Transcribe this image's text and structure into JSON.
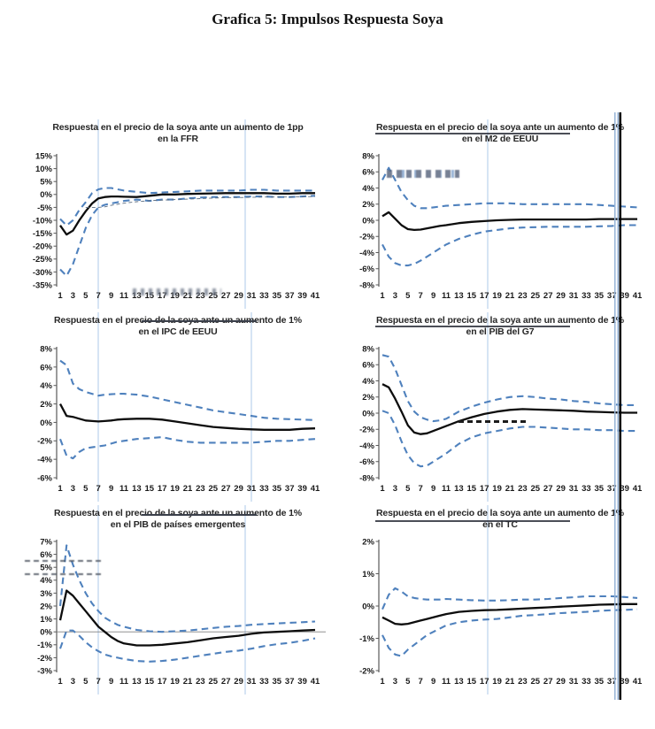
{
  "page_title": "Grafica 5: Impulsos Respuesta Soya",
  "colors": {
    "center_line": "#0d0d0d",
    "band": "#4f81bd",
    "light_vline": "#cfdff2",
    "rule_blue": "#95b3d7",
    "axis": "#595959",
    "zero_line": "#808080"
  },
  "x_points": [
    1,
    2,
    3,
    4,
    5,
    6,
    7,
    8,
    9,
    10,
    11,
    13,
    15,
    17,
    19,
    21,
    23,
    25,
    27,
    29,
    31,
    33,
    35,
    37,
    39,
    41
  ],
  "x_ticks": [
    1,
    3,
    5,
    7,
    9,
    11,
    13,
    15,
    17,
    19,
    21,
    23,
    25,
    27,
    29,
    31,
    33,
    35,
    37,
    39,
    41
  ],
  "chart_data": [
    {
      "type": "line",
      "title_line1": "Respuesta en el precio de la soya ante un aumento de 1pp",
      "title_line2": "en la FFR",
      "ylim": [
        -35,
        15
      ],
      "ytick_step": 5,
      "light_vlines": [
        7,
        30
      ],
      "zero_line": false,
      "series": [
        {
          "name": "respuesta",
          "values": [
            -12,
            -15.5,
            -14,
            -10,
            -6.5,
            -3.5,
            -1.5,
            -1,
            -0.8,
            -0.8,
            -0.9,
            -1,
            -0.5,
            0,
            0,
            0.2,
            0.3,
            0.4,
            0.5,
            0.5,
            0.5,
            0.5,
            0.3,
            0.3,
            0.5,
            0.5
          ]
        },
        {
          "name": "banda_superior",
          "values": [
            -9.5,
            -12,
            -10,
            -6,
            -3,
            0.5,
            2,
            2.5,
            2.5,
            2,
            1.5,
            1,
            0.5,
            0.8,
            1,
            1.2,
            1.5,
            1.5,
            1.5,
            1.5,
            1.8,
            1.8,
            1.5,
            1.5,
            1.5,
            1.5
          ]
        },
        {
          "name": "banda_inferior",
          "values": [
            -29,
            -31.5,
            -27,
            -20,
            -13,
            -8,
            -5,
            -4,
            -3.5,
            -3,
            -2.5,
            -2,
            -2.5,
            -2,
            -2,
            -1.5,
            -1.2,
            -1,
            -1,
            -1,
            -0.8,
            -0.8,
            -1,
            -1,
            -0.8,
            -0.5
          ]
        },
        {
          "name": "banda_interna",
          "values": [
            null,
            null,
            null,
            null,
            -5,
            -5,
            -5,
            -4.8,
            -4.2,
            -3.8,
            -3.4,
            -2.8,
            -2.4,
            -2.2,
            -2,
            -1.8,
            -1.6,
            -1.4,
            -1.2,
            -1.2,
            -1.1,
            -1,
            -1,
            -1,
            -0.9,
            -0.8
          ]
        }
      ]
    },
    {
      "type": "line",
      "title_line1": "Respuesta en el precio de la soya ante un aumento de 1%",
      "title_line2": "en el M2 de EEUU",
      "ylim": [
        -8,
        8
      ],
      "ytick_step": 2,
      "light_vlines": [
        17.5
      ],
      "zero_line": false,
      "series": [
        {
          "name": "respuesta",
          "values": [
            0.5,
            1.0,
            0.2,
            -0.6,
            -1.1,
            -1.2,
            -1.15,
            -1.0,
            -0.85,
            -0.7,
            -0.6,
            -0.35,
            -0.2,
            -0.1,
            0,
            0.05,
            0.1,
            0.1,
            0.1,
            0.1,
            0.1,
            0.1,
            0.15,
            0.15,
            0.15,
            0.15
          ]
        },
        {
          "name": "banda_superior",
          "values": [
            5,
            6.5,
            5,
            3.5,
            2.5,
            1.8,
            1.5,
            1.5,
            1.6,
            1.7,
            1.8,
            1.9,
            2.0,
            2.1,
            2.1,
            2.1,
            2.0,
            2.0,
            2.0,
            2.0,
            2.0,
            2.0,
            1.9,
            1.8,
            1.7,
            1.6
          ]
        },
        {
          "name": "banda_inferior",
          "values": [
            -3,
            -4.5,
            -5.3,
            -5.6,
            -5.6,
            -5.4,
            -5.0,
            -4.5,
            -4.0,
            -3.5,
            -3.0,
            -2.3,
            -1.8,
            -1.4,
            -1.2,
            -1.0,
            -0.9,
            -0.85,
            -0.8,
            -0.8,
            -0.8,
            -0.8,
            -0.75,
            -0.7,
            -0.6,
            -0.6
          ]
        }
      ]
    },
    {
      "type": "line",
      "title_line1": "Respuesta en el precio de la soya ante un aumento de 1%",
      "title_line2": "en el IPC de EEUU",
      "ylim": [
        -6,
        8
      ],
      "ytick_step": 2,
      "light_vlines": [
        7,
        31
      ],
      "zero_line": false,
      "series": [
        {
          "name": "respuesta",
          "values": [
            2.0,
            0.7,
            0.6,
            0.4,
            0.2,
            0.15,
            0.1,
            0.15,
            0.2,
            0.3,
            0.35,
            0.4,
            0.4,
            0.3,
            0.1,
            -0.1,
            -0.3,
            -0.5,
            -0.6,
            -0.7,
            -0.75,
            -0.8,
            -0.8,
            -0.8,
            -0.7,
            -0.65
          ]
        },
        {
          "name": "banda_superior",
          "values": [
            6.7,
            6.2,
            4.2,
            3.6,
            3.3,
            3.1,
            2.9,
            3.0,
            3.05,
            3.1,
            3.1,
            3.0,
            2.8,
            2.5,
            2.2,
            1.9,
            1.6,
            1.3,
            1.1,
            0.9,
            0.7,
            0.5,
            0.4,
            0.35,
            0.3,
            0.25
          ]
        },
        {
          "name": "banda_inferior",
          "values": [
            -1.8,
            -3.6,
            -3.9,
            -3.2,
            -2.8,
            -2.7,
            -2.6,
            -2.5,
            -2.3,
            -2.1,
            -2.0,
            -1.8,
            -1.7,
            -1.6,
            -1.9,
            -2.1,
            -2.2,
            -2.2,
            -2.2,
            -2.2,
            -2.2,
            -2.1,
            -2.0,
            -2.0,
            -1.9,
            -1.8
          ]
        }
      ]
    },
    {
      "type": "line",
      "title_line1": "Respuesta en el precio de la soya ante un aumento de 1%",
      "title_line2": "en el PIB del G7",
      "ylim": [
        -8,
        8
      ],
      "ytick_step": 2,
      "light_vlines": [
        17.5
      ],
      "zero_line": false,
      "series": [
        {
          "name": "respuesta",
          "values": [
            3.6,
            3.2,
            1.8,
            0.2,
            -1.5,
            -2.4,
            -2.6,
            -2.5,
            -2.2,
            -1.9,
            -1.6,
            -1.0,
            -0.5,
            -0.1,
            0.2,
            0.4,
            0.5,
            0.45,
            0.4,
            0.35,
            0.3,
            0.2,
            0.15,
            0.1,
            0.05,
            0.05
          ]
        },
        {
          "name": "banda_superior",
          "values": [
            7.2,
            7.0,
            5.5,
            3.5,
            1.5,
            0.2,
            -0.5,
            -0.8,
            -1.0,
            -0.9,
            -0.7,
            0.2,
            0.8,
            1.3,
            1.7,
            2.0,
            2.1,
            2.0,
            1.8,
            1.7,
            1.5,
            1.4,
            1.2,
            1.1,
            1.0,
            1.0
          ]
        },
        {
          "name": "banda_inferior",
          "values": [
            0.3,
            0.0,
            -1.5,
            -3.5,
            -5.2,
            -6.2,
            -6.6,
            -6.5,
            -6.0,
            -5.5,
            -5.0,
            -3.8,
            -3.0,
            -2.5,
            -2.2,
            -1.9,
            -1.7,
            -1.7,
            -1.8,
            -1.9,
            -2.0,
            -2.0,
            -2.1,
            -2.1,
            -2.2,
            -2.2
          ]
        }
      ]
    },
    {
      "type": "line",
      "title_line1": "Respuesta en el precio de la soya ante un aumento de 1%",
      "title_line2": "en el PIB de países emergentes",
      "ylim": [
        -3,
        7
      ],
      "ytick_step": 1,
      "light_vlines": [
        7,
        30
      ],
      "zero_line": true,
      "series": [
        {
          "name": "respuesta",
          "values": [
            0.9,
            3.2,
            2.8,
            2.2,
            1.6,
            1.0,
            0.4,
            0.0,
            -0.4,
            -0.7,
            -0.9,
            -1.05,
            -1.05,
            -1.0,
            -0.9,
            -0.8,
            -0.65,
            -0.5,
            -0.4,
            -0.3,
            -0.15,
            -0.05,
            0.0,
            0.05,
            0.1,
            0.15
          ]
        },
        {
          "name": "banda_superior",
          "values": [
            2.0,
            6.7,
            5.2,
            4.0,
            3.0,
            2.2,
            1.6,
            1.1,
            0.8,
            0.55,
            0.4,
            0.15,
            0.05,
            0.0,
            0.05,
            0.1,
            0.2,
            0.3,
            0.4,
            0.45,
            0.55,
            0.6,
            0.65,
            0.7,
            0.75,
            0.8
          ]
        },
        {
          "name": "banda_inferior",
          "values": [
            -1.3,
            0.1,
            0.1,
            -0.3,
            -0.8,
            -1.2,
            -1.5,
            -1.75,
            -1.9,
            -2.0,
            -2.1,
            -2.25,
            -2.3,
            -2.25,
            -2.15,
            -2.0,
            -1.85,
            -1.7,
            -1.55,
            -1.45,
            -1.3,
            -1.1,
            -0.95,
            -0.85,
            -0.7,
            -0.5
          ]
        }
      ]
    },
    {
      "type": "line",
      "title_line1": "Respuesta en el precio de la soya ante un aumento de 1%",
      "title_line2": "en el TC",
      "ylim": [
        -2,
        2
      ],
      "ytick_step": 1,
      "light_vlines": [
        17.5
      ],
      "zero_line": false,
      "series": [
        {
          "name": "respuesta",
          "values": [
            -0.35,
            -0.45,
            -0.55,
            -0.57,
            -0.55,
            -0.5,
            -0.45,
            -0.4,
            -0.35,
            -0.3,
            -0.25,
            -0.18,
            -0.15,
            -0.13,
            -0.12,
            -0.1,
            -0.08,
            -0.06,
            -0.04,
            -0.02,
            0,
            0.02,
            0.04,
            0.05,
            0.06,
            0.06
          ]
        },
        {
          "name": "banda_superior",
          "values": [
            -0.1,
            0.35,
            0.55,
            0.45,
            0.3,
            0.25,
            0.22,
            0.2,
            0.2,
            0.2,
            0.22,
            0.2,
            0.18,
            0.17,
            0.17,
            0.18,
            0.2,
            0.2,
            0.22,
            0.25,
            0.27,
            0.3,
            0.3,
            0.3,
            0.28,
            0.25
          ]
        },
        {
          "name": "banda_inferior",
          "values": [
            -0.9,
            -1.3,
            -1.5,
            -1.55,
            -1.35,
            -1.2,
            -1.05,
            -0.9,
            -0.8,
            -0.7,
            -0.6,
            -0.5,
            -0.45,
            -0.42,
            -0.4,
            -0.35,
            -0.3,
            -0.28,
            -0.25,
            -0.22,
            -0.2,
            -0.18,
            -0.15,
            -0.13,
            -0.12,
            -0.1
          ]
        }
      ]
    }
  ]
}
